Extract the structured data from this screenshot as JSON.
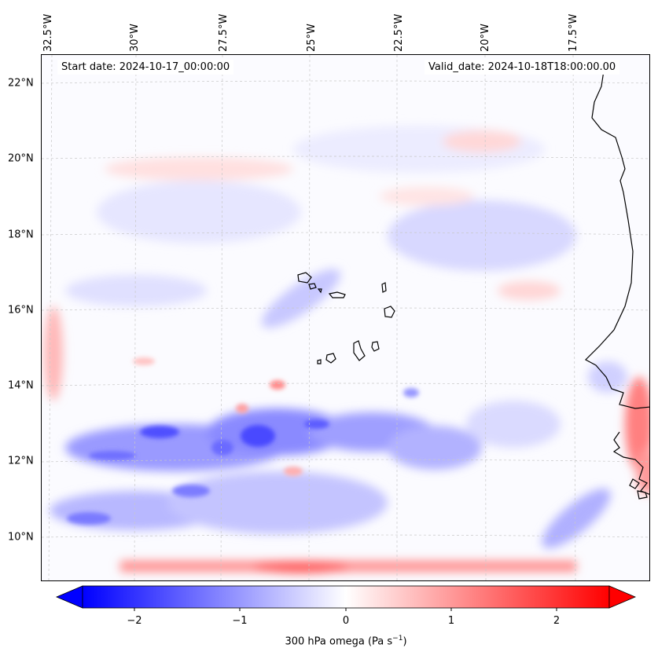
{
  "map": {
    "start_date": "Start date: 2024-10-17_00:00:00",
    "valid_date": "Valid_date: 2024-10-18T18:00:00.00",
    "lon_labels": [
      "32.5°W",
      "30°W",
      "27.5°W",
      "25°W",
      "22.5°W",
      "20°W",
      "17.5°W"
    ],
    "lat_labels": [
      "22°N",
      "20°N",
      "18°N",
      "16°N",
      "14°N",
      "12°N",
      "10°N"
    ],
    "colors": {
      "negative": "#0000ff",
      "positive": "#ff0000",
      "neutral": "#ffffff",
      "coastline": "#000000",
      "gridline": "#c8c8c8"
    }
  },
  "colorbar": {
    "tick_labels": [
      "−2",
      "−1",
      "0",
      "1",
      "2"
    ],
    "label_main": "300 hPa omega (Pa s",
    "label_exp": "−1",
    "label_end": ")",
    "range": [
      -2.7,
      2.7
    ],
    "cmap": "bwr"
  }
}
